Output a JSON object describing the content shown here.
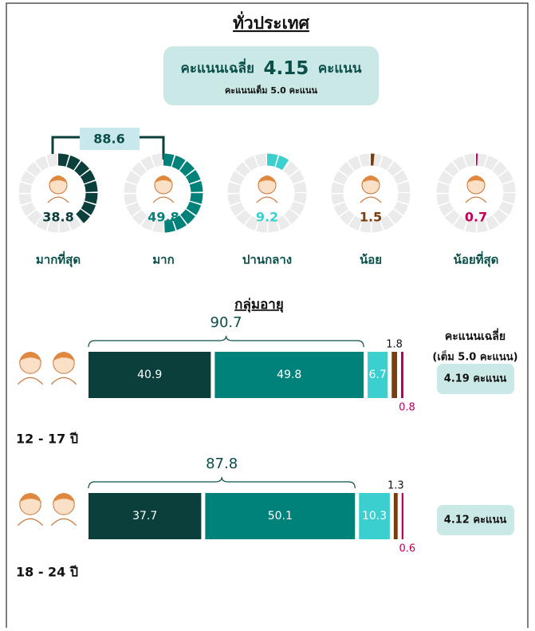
{
  "title": "ทั่วประเทศ",
  "average": {
    "prefix": "คะแนนเฉลี่ย",
    "value": "4.15",
    "suffix": "คะแนน",
    "note": "คะแนนเต็ม 5.0 คะแนน"
  },
  "top_two": 88.6,
  "levels": [
    {
      "label": "มากที่สุด",
      "value": 38.8,
      "color": "#0b3f3b"
    },
    {
      "label": "มาก",
      "value": 49.8,
      "color": "#00827a"
    },
    {
      "label": "ปานกลาง",
      "value": 9.2,
      "color": "#3ccfcf"
    },
    {
      "label": "น้อย",
      "value": 1.5,
      "color": "#7a3e0e"
    },
    {
      "label": "น้อยที่สุด",
      "value": 0.7,
      "color": "#c2005a"
    }
  ],
  "section_title": "กลุ่มอายุ",
  "avg_header": "คะแนนเฉลี่ย",
  "avg_subheader": "(เต็ม 5.0 คะแนน)",
  "groups": [
    {
      "label": "12 - 17 ปี",
      "values": [
        40.9,
        49.8,
        6.7,
        1.8,
        0.8
      ],
      "top_two": 90.7,
      "average": "4.19 คะแนน"
    },
    {
      "label": "18 - 24 ปี",
      "values": [
        37.7,
        50.1,
        10.3,
        1.3,
        0.6
      ],
      "top_two": 87.8,
      "average": "4.12 คะแนน"
    }
  ]
}
